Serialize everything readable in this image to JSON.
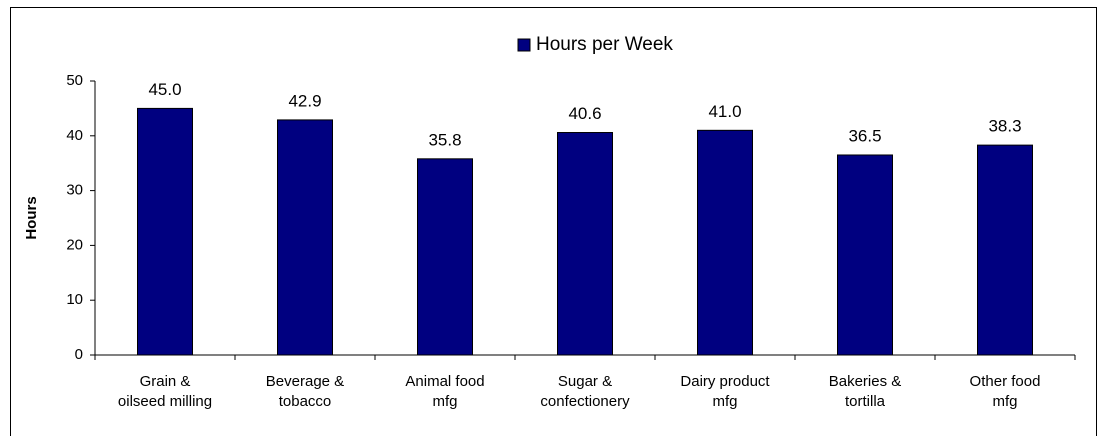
{
  "chart_data": {
    "type": "bar",
    "categories": [
      "Grain &\noilseed milling",
      "Beverage &\ntobacco",
      "Animal food\nmfg",
      "Sugar &\nconfectionery",
      "Dairy product\nmfg",
      "Bakeries &\ntortilla",
      "Other food\nmfg"
    ],
    "series": [
      {
        "name": "Hours per Week",
        "color": "#000080",
        "values": [
          45,
          42.9,
          35.8,
          40.6,
          41,
          36.5,
          38.3
        ],
        "value_labels": [
          "45.0",
          "42.9",
          "35.8",
          "40.6",
          "41.0",
          "36.5",
          "38.3"
        ]
      }
    ],
    "y_label": "Hours",
    "ylim": [
      0,
      50
    ],
    "yticks": [
      0,
      10,
      20,
      30,
      40,
      50
    ],
    "legend": "top",
    "grid": false
  }
}
